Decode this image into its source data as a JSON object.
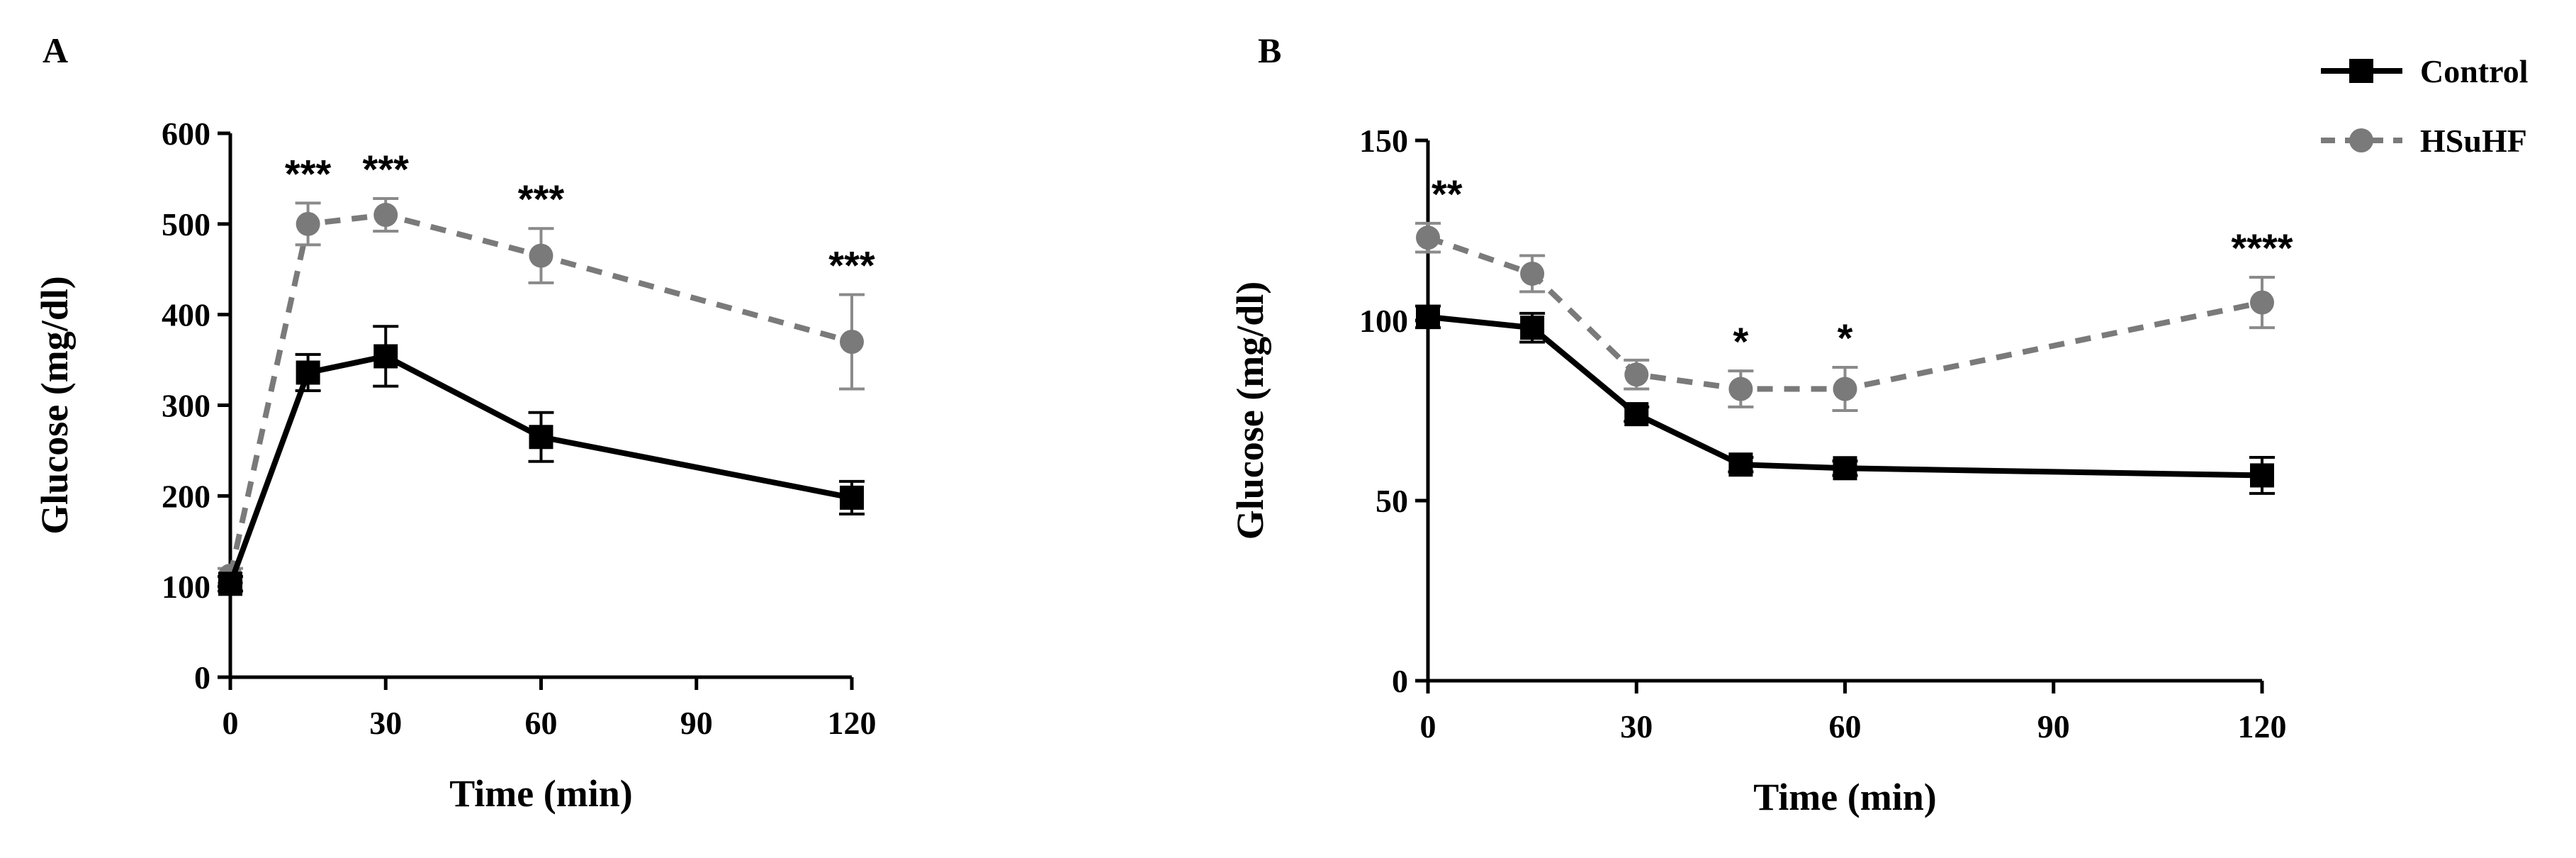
{
  "figure": {
    "legend": [
      {
        "name": "Control",
        "color": "#000000",
        "marker": "square",
        "line": "solid"
      },
      {
        "name": "HSuHF",
        "color": "#7a7a7a",
        "marker": "circle",
        "line": "dashed"
      }
    ]
  },
  "chart_data": [
    {
      "panel": "A",
      "type": "line",
      "title": "",
      "xlabel": "Time (min)",
      "ylabel": "Glucose (mg/dl)",
      "xlim": [
        0,
        120
      ],
      "ylim": [
        0,
        600
      ],
      "xticks": [
        0,
        30,
        60,
        90,
        120
      ],
      "yticks": [
        0,
        100,
        200,
        300,
        400,
        500,
        600
      ],
      "grid": false,
      "series": [
        {
          "name": "Control",
          "x": [
            0,
            15,
            30,
            60,
            120
          ],
          "y": [
            103,
            336,
            354,
            265,
            198
          ],
          "err": [
            8,
            20,
            33,
            27,
            18
          ]
        },
        {
          "name": "HSuHF",
          "x": [
            0,
            15,
            30,
            60,
            120
          ],
          "y": [
            112,
            500,
            510,
            465,
            370
          ],
          "err": [
            8,
            23,
            18,
            30,
            52
          ]
        }
      ],
      "annotations": [
        {
          "x": 15,
          "y": 500,
          "text": "***"
        },
        {
          "x": 30,
          "y": 510,
          "text": "***"
        },
        {
          "x": 60,
          "y": 465,
          "text": "***"
        },
        {
          "x": 120,
          "y": 370,
          "text": "***"
        }
      ]
    },
    {
      "panel": "B",
      "type": "line",
      "title": "",
      "xlabel": "Time (min)",
      "ylabel": "Glucose (mg/dl)",
      "xlim": [
        0,
        120
      ],
      "ylim": [
        0,
        150
      ],
      "xticks": [
        0,
        30,
        60,
        90,
        120
      ],
      "yticks": [
        0,
        50,
        100,
        150
      ],
      "grid": false,
      "series": [
        {
          "name": "Control",
          "x": [
            0,
            15,
            30,
            45,
            60,
            120
          ],
          "y": [
            101,
            98,
            74,
            60,
            59,
            57
          ],
          "err": [
            3,
            4,
            2,
            2,
            2,
            5
          ]
        },
        {
          "name": "HSuHF",
          "x": [
            0,
            15,
            30,
            45,
            60,
            120
          ],
          "y": [
            123,
            113,
            85,
            81,
            81,
            105
          ],
          "err": [
            4,
            5,
            4,
            5,
            6,
            7
          ]
        }
      ],
      "annotations": [
        {
          "x": 0,
          "y": 123,
          "text": "**"
        },
        {
          "x": 45,
          "y": 81,
          "text": "*"
        },
        {
          "x": 60,
          "y": 81,
          "text": "*"
        },
        {
          "x": 120,
          "y": 105,
          "text": "****"
        }
      ]
    }
  ]
}
